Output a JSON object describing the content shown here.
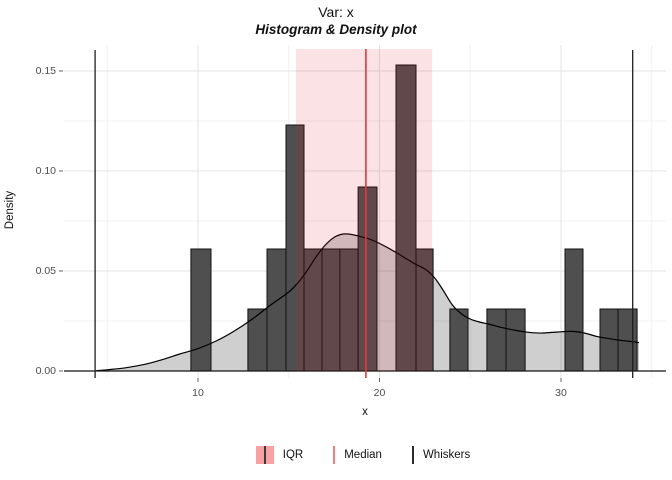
{
  "figure": {
    "title": "Var: x",
    "subtitle": "Histogram & Density plot"
  },
  "legend": {
    "items": [
      {
        "label": "IQR",
        "key": "rect",
        "fill": "#f8a1a3",
        "line_color": "#3a3a3a"
      },
      {
        "label": "Median",
        "key": "line",
        "color": "#f07c7c"
      },
      {
        "label": "Whiskers",
        "key": "line",
        "color": "#2a2a2a"
      }
    ]
  },
  "chart_data": {
    "type": "histogram+density",
    "title": "Var: x",
    "subtitle": "Histogram & Density plot",
    "xlabel": "x",
    "ylabel": "Density",
    "x_ticks": [
      10,
      20,
      30
    ],
    "x_tick_labels": [
      "10",
      "20",
      "30"
    ],
    "x_minor_ticks": [
      5,
      15,
      25,
      35
    ],
    "y_ticks": [
      0,
      0.05,
      0.1,
      0.15
    ],
    "y_tick_labels": [
      "0.00",
      "0.05",
      "0.10",
      "0.15"
    ],
    "y_minor_ticks": [
      0.025,
      0.075,
      0.125
    ],
    "xlim": [
      2.6,
      35.9
    ],
    "ylim": [
      0,
      0.163
    ],
    "grid": true,
    "legend_position": "bottom",
    "histogram": {
      "binwidth": 1.03,
      "bars": [
        {
          "x0": 9.61,
          "x1": 10.72,
          "density": 0.061
        },
        {
          "x0": 12.75,
          "x1": 13.8,
          "density": 0.031
        },
        {
          "x0": 13.8,
          "x1": 14.85,
          "density": 0.061
        },
        {
          "x0": 14.85,
          "x1": 15.84,
          "density": 0.123
        },
        {
          "x0": 15.84,
          "x1": 16.83,
          "density": 0.061
        },
        {
          "x0": 16.83,
          "x1": 17.82,
          "density": 0.061
        },
        {
          "x0": 17.82,
          "x1": 18.82,
          "density": 0.061
        },
        {
          "x0": 18.82,
          "x1": 19.86,
          "density": 0.092
        },
        {
          "x0": 20.91,
          "x1": 22.01,
          "density": 0.153
        },
        {
          "x0": 22.01,
          "x1": 22.95,
          "density": 0.061
        },
        {
          "x0": 23.88,
          "x1": 24.88,
          "density": 0.031
        },
        {
          "x0": 25.92,
          "x1": 26.97,
          "density": 0.031
        },
        {
          "x0": 26.97,
          "x1": 28.02,
          "density": 0.031
        },
        {
          "x0": 30.22,
          "x1": 31.21,
          "density": 0.061
        },
        {
          "x0": 32.15,
          "x1": 33.14,
          "density": 0.031
        },
        {
          "x0": 33.14,
          "x1": 34.19,
          "density": 0.031
        }
      ]
    },
    "density_curve": {
      "points": [
        [
          4.4,
          0.0002
        ],
        [
          5,
          0.0006
        ],
        [
          6,
          0.0016
        ],
        [
          7,
          0.0032
        ],
        [
          8,
          0.0056
        ],
        [
          9,
          0.0085
        ],
        [
          10,
          0.0112
        ],
        [
          11,
          0.015
        ],
        [
          12,
          0.02
        ],
        [
          13,
          0.026
        ],
        [
          14,
          0.033
        ],
        [
          15,
          0.0395
        ],
        [
          15.5,
          0.044
        ],
        [
          16,
          0.05
        ],
        [
          16.5,
          0.057
        ],
        [
          17,
          0.0628
        ],
        [
          17.5,
          0.0668
        ],
        [
          18,
          0.0685
        ],
        [
          18.5,
          0.0682
        ],
        [
          19,
          0.0671
        ],
        [
          19.5,
          0.0658
        ],
        [
          20,
          0.0638
        ],
        [
          20.5,
          0.0614
        ],
        [
          21,
          0.0588
        ],
        [
          21.5,
          0.056
        ],
        [
          22,
          0.0533
        ],
        [
          22.5,
          0.051
        ],
        [
          23,
          0.047
        ],
        [
          23.5,
          0.0405
        ],
        [
          24,
          0.0332
        ],
        [
          24.5,
          0.0287
        ],
        [
          25,
          0.026
        ],
        [
          25.5,
          0.0245
        ],
        [
          26,
          0.0235
        ],
        [
          26.5,
          0.0223
        ],
        [
          27,
          0.0212
        ],
        [
          27.5,
          0.0203
        ],
        [
          28,
          0.0196
        ],
        [
          28.5,
          0.0191
        ],
        [
          29,
          0.019
        ],
        [
          29.5,
          0.0193
        ],
        [
          30,
          0.0196
        ],
        [
          30.5,
          0.0198
        ],
        [
          31,
          0.0195
        ],
        [
          31.5,
          0.0185
        ],
        [
          32,
          0.0172
        ],
        [
          32.5,
          0.0164
        ],
        [
          33,
          0.0157
        ],
        [
          33.5,
          0.0151
        ],
        [
          34,
          0.0146
        ],
        [
          34.3,
          0.0142
        ]
      ]
    },
    "stats": {
      "q1": 15.4,
      "q3": 22.9,
      "median": 19.25,
      "whisker_low": 4.33,
      "whisker_high": 33.95
    },
    "colors": {
      "bar_fill": "#4f4f4f",
      "bar_stroke": "#101010",
      "density_fill": "rgba(0,0,0,0.19)",
      "density_line": "#000000",
      "iqr_fill": "rgba(225,30,45,0.13)",
      "median_line": "#e23b3b",
      "whisker_line": "#1f1f1f",
      "axis_line": "#141414",
      "grid_major": "#e3e3e3",
      "grid_minor": "#f0f0f0",
      "tick_text": "#4d4d4d"
    }
  }
}
